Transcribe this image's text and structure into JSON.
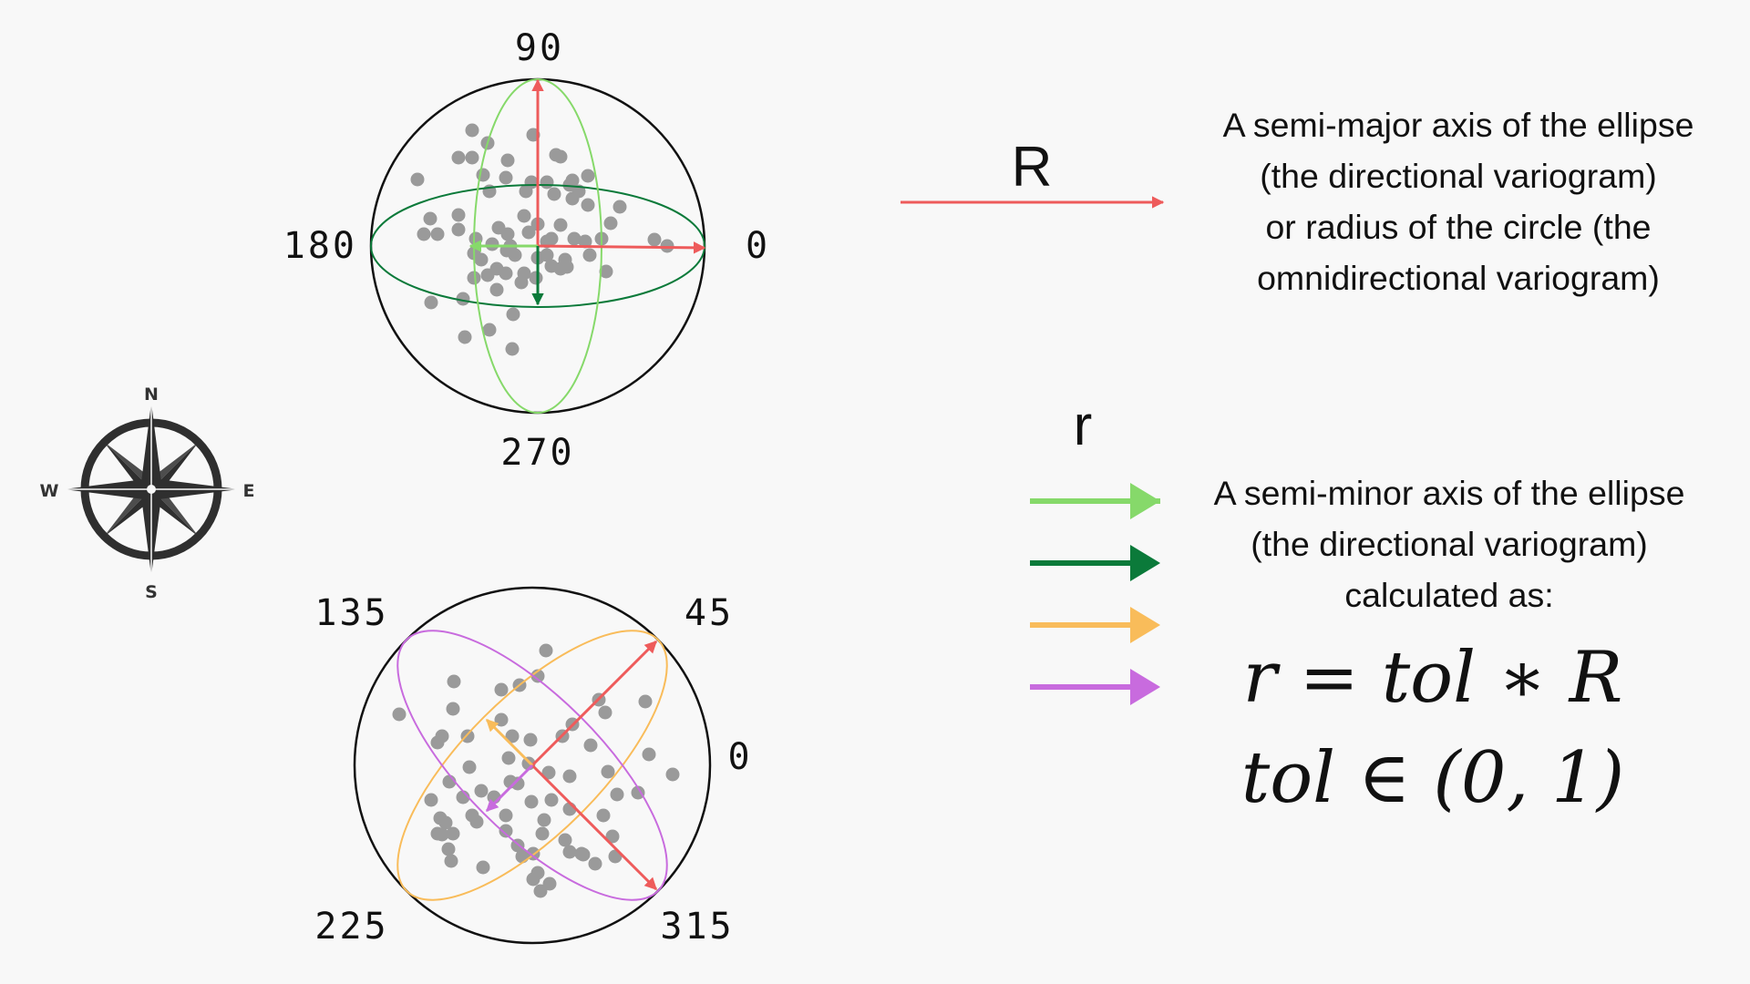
{
  "diagram1": {
    "labels": {
      "top": "90",
      "left": "180",
      "right": "0",
      "bottom": "270"
    }
  },
  "diagram2": {
    "labels": {
      "top_left": "135",
      "top_right": "45",
      "right": "0",
      "bottom_left": "225",
      "bottom_right": "315"
    }
  },
  "compass": {
    "n": "N",
    "e": "E",
    "s": "S",
    "w": "W"
  },
  "legend_R": {
    "symbol": "R",
    "lines": [
      "A semi-major axis of the ellipse",
      "(the directional variogram)",
      "or radius of the circle (the",
      "omnidirectional variogram)"
    ]
  },
  "legend_r": {
    "symbol": "r",
    "lines": [
      "A semi-minor axis of the ellipse",
      "(the directional variogram)",
      "calculated as:"
    ],
    "formula1": "r = tol ∗ R",
    "formula2": "tol ∈ (0, 1)"
  },
  "colors": {
    "red": "#ee5b5b",
    "light_green": "#86d96a",
    "dark_green": "#0b7a3a",
    "orange": "#f9bc5a",
    "purple": "#c86bde",
    "point": "#9a9a9a",
    "compass": "#2f2f2f"
  }
}
